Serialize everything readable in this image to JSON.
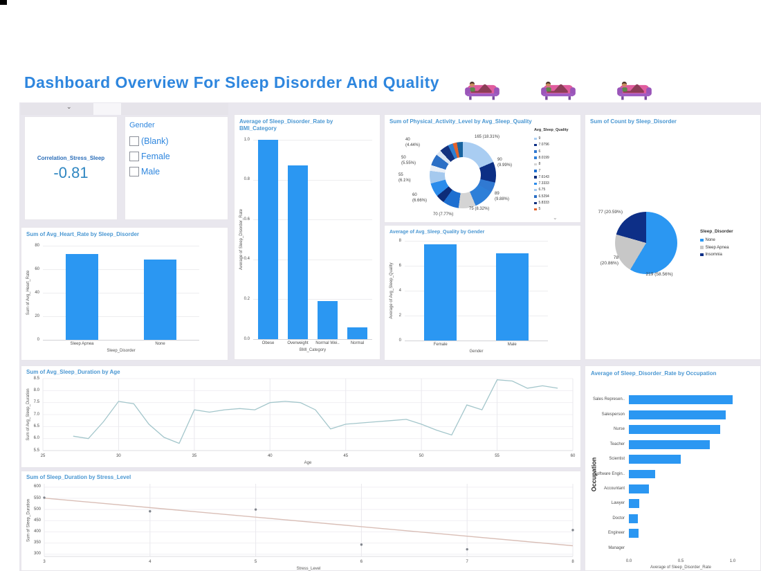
{
  "page": {
    "title": "Dashboard Overview For Sleep Disorder And Quality"
  },
  "header": {
    "couch_icon": "person-lying-on-couch",
    "couch_count": 3
  },
  "icons": {
    "strip_chevron": "⌄",
    "donut_scroll_chevron": "⌄"
  },
  "colors": {
    "accent": "#2e86de",
    "chart_title": "#4a97d2",
    "bar": "#2b97f2",
    "line": "#a3c6cb",
    "trend": "#d9beb6",
    "point": "#80858c",
    "pie_none": "#2b97f2",
    "pie_sleep_apnea": "#c7c7c7",
    "pie_insomnia": "#0d2f87",
    "donut_orange": "#e2622b"
  },
  "correlation_card": {
    "label": "Correlation_Stress_Sleep",
    "value": "-0.81"
  },
  "gender_filter": {
    "title": "Gender",
    "options": [
      {
        "label": "(Blank)",
        "checked": false
      },
      {
        "label": "Female",
        "checked": false
      },
      {
        "label": "Male",
        "checked": false
      }
    ]
  },
  "chart_data": [
    {
      "id": "bmi",
      "type": "bar",
      "title": "Average of Sleep_Disorder_Rate by BMI_Category",
      "xlabel": "BMI_Category",
      "ylabel": "Average of Sleep_Disorder_Rate",
      "categories": [
        "Obese",
        "Overweight",
        "Normal Wei..",
        "Normal"
      ],
      "values": [
        1.0,
        0.87,
        0.19,
        0.06
      ],
      "ylim": [
        0,
        1
      ],
      "yticks": [
        "0.0",
        "0.2",
        "0.4",
        "0.6",
        "0.8",
        "1.0"
      ],
      "bw": 0.68,
      "m": {
        "l": 24,
        "r": 10,
        "t": 6,
        "b": 26
      }
    },
    {
      "id": "activity_donut",
      "type": "donut",
      "title": "Sum of Physical_Activity_Level by Avg_Sleep_Quality",
      "legend_title": "Avg_Sleep_Quality",
      "geo": {
        "cx": 113,
        "cy": 87,
        "r": 48,
        "hole": 0.55
      },
      "label_fs": 6,
      "segments": [
        {
          "value": 18.31,
          "color": "#a9cdf2",
          "label": "165 (18.31%)"
        },
        {
          "value": 9.99,
          "color": "#0c2f85",
          "label": "90 (9.99%)"
        },
        {
          "value": 5.0,
          "color": "#3079d2"
        },
        {
          "value": 9.88,
          "color": "#2d7fd8",
          "label": "89 (9.88%)"
        },
        {
          "value": 8.32,
          "color": "#d4d4d4",
          "label": "75 (8.32%)"
        },
        {
          "value": 7.77,
          "color": "#1e6fd0",
          "label": "70 (7.77%)"
        },
        {
          "value": 4.2,
          "color": "#0d2c78"
        },
        {
          "value": 6.66,
          "color": "#2b8ceb",
          "label": "60 (6.66%)"
        },
        {
          "value": 6.1,
          "color": "#a5c9ee",
          "label": "55 (6.1%)"
        },
        {
          "value": 2.8,
          "color": "#e9eff8"
        },
        {
          "value": 5.55,
          "color": "#2a6fc6",
          "label": "50 (5.55%)"
        },
        {
          "value": 2.6,
          "color": "#dbe6f4"
        },
        {
          "value": 4.44,
          "color": "#12317f",
          "label": "40 (4.44%)"
        },
        {
          "value": 2.4,
          "color": "#2f7fd0"
        },
        {
          "value": 2.0,
          "color": "#e2622b"
        },
        {
          "value": 2.9,
          "color": "#17639f"
        }
      ],
      "labels": [
        {
          "text": "165 (18.31%)",
          "x": 130,
          "y": 29,
          "w": 70,
          "align": "left"
        },
        {
          "text": "90\n(9.99%)",
          "x": 163,
          "y": 62,
          "w": 44,
          "align": "left"
        },
        {
          "text": "89\n(9.88%)",
          "x": 159,
          "y": 111,
          "w": 44,
          "align": "left"
        },
        {
          "text": "75 (8.32%)",
          "x": 122,
          "y": 133,
          "w": 60,
          "align": "left"
        },
        {
          "text": "70 (7.77%)",
          "x": 70,
          "y": 141,
          "w": 60,
          "align": "left"
        },
        {
          "text": "60\n(6.66%)",
          "x": 40,
          "y": 113,
          "w": 40,
          "align": "left"
        },
        {
          "text": "55\n(6.1%)",
          "x": 20,
          "y": 84,
          "w": 40,
          "align": "left"
        },
        {
          "text": "50\n(5.55%)",
          "x": 24,
          "y": 59,
          "w": 40,
          "align": "left"
        },
        {
          "text": "40\n(4.44%)",
          "x": 30,
          "y": 33,
          "w": 40,
          "align": "left"
        }
      ],
      "legend": [
        {
          "label": "9",
          "color": "#a9cdf2"
        },
        {
          "label": "7.0796",
          "color": "#0c2f85"
        },
        {
          "label": "6",
          "color": "#3079d2"
        },
        {
          "label": "8.0199",
          "color": "#2d7fd8"
        },
        {
          "label": "8",
          "color": "#d4d4d4"
        },
        {
          "label": "7",
          "color": "#1e6fd0"
        },
        {
          "label": "7.6143",
          "color": "#0d2c78"
        },
        {
          "label": "7.3333",
          "color": "#2b8ceb"
        },
        {
          "label": "6.75",
          "color": "#a5c9ee"
        },
        {
          "label": "6.5294",
          "color": "#2a6fc6"
        },
        {
          "label": "5.8333",
          "color": "#12317f"
        },
        {
          "label": "5",
          "color": "#e2622b"
        }
      ],
      "legend_pos": {
        "x": 216,
        "y": 20,
        "t0": 12,
        "dy": 9.3,
        "fs": 5,
        "ms": 3.5
      }
    },
    {
      "id": "sleep_pie",
      "type": "pie",
      "title": "Sum of Count by Sleep_Disorder",
      "legend_title": "Sleep_Disorder",
      "geo": {
        "cx": 88,
        "cy": 185,
        "r": 45
      },
      "label_fs": 6.5,
      "segments": [
        {
          "name": "None",
          "count": 219,
          "value": 58.56,
          "color": "#2b97f2"
        },
        {
          "name": "Sleep Apnea",
          "count": 78,
          "value": 20.86,
          "color": "#c7c7c7"
        },
        {
          "name": "Insomnia",
          "count": 77,
          "value": 20.59,
          "color": "#0d2f87"
        }
      ],
      "labels": [
        {
          "text": "77 (20.59%)",
          "x": 2,
          "y": 137,
          "w": 52,
          "align": "right"
        },
        {
          "text": "78\n(20.86%)",
          "x": 2,
          "y": 203,
          "w": 46,
          "align": "right"
        },
        {
          "text": "219 (58.56%)",
          "x": 62,
          "y": 227,
          "w": 90,
          "align": "center"
        }
      ],
      "legend": [
        {
          "label": "None",
          "color": "#2b97f2"
        },
        {
          "label": "Sleep Apnea",
          "color": "#c7c7c7"
        },
        {
          "label": "Insomnia",
          "color": "#0d2f87"
        }
      ],
      "legend_pos": {
        "x": 166,
        "y": 166,
        "t0": 12,
        "dy": 10.5,
        "fs": 6,
        "ms": 4.5
      }
    },
    {
      "id": "heart",
      "type": "bar",
      "title": "Sum of Avg_Heart_Rate by Sleep_Disorder",
      "xlabel": "Sleep_Disorder",
      "ylabel": "Sum of Avg_Heart_Rate",
      "categories": [
        "Sleep Apnea",
        "None"
      ],
      "values": [
        73,
        68
      ],
      "ylim": [
        0,
        80
      ],
      "yticks": [
        "0",
        "20",
        "40",
        "60",
        "80"
      ],
      "bw": 0.42,
      "m": {
        "l": 28,
        "r": 40,
        "t": 8,
        "b": 26
      }
    },
    {
      "id": "quality_gender",
      "type": "bar",
      "title": "Average of Avg_Sleep_Quality by Gender",
      "xlabel": "Gender",
      "ylabel": "Average of Avg_Sleep_Quality",
      "categories": [
        "Female",
        "Male"
      ],
      "values": [
        7.7,
        7.0
      ],
      "ylim": [
        0,
        8
      ],
      "yticks": [
        "0",
        "2",
        "4",
        "6",
        "8"
      ],
      "bw": 0.45,
      "m": {
        "l": 26,
        "r": 45,
        "t": 6,
        "b": 26
      }
    },
    {
      "id": "age_line",
      "type": "line",
      "title": "Sum of Avg_Sleep_Duration by Age",
      "xlabel": "Age",
      "ylabel": "Sum of Avg_Sleep_Duration",
      "x": [
        27,
        28,
        29,
        30,
        31,
        32,
        33,
        34,
        35,
        36,
        37,
        38,
        39,
        40,
        41,
        42,
        43,
        44,
        45,
        46,
        47,
        48,
        49,
        50,
        51,
        52,
        53,
        54,
        55,
        56,
        57,
        58,
        59
      ],
      "y": [
        6.1,
        6.0,
        6.7,
        7.55,
        7.45,
        6.6,
        6.05,
        5.8,
        7.2,
        7.1,
        7.2,
        7.25,
        7.2,
        7.5,
        7.55,
        7.5,
        7.2,
        6.4,
        6.6,
        6.65,
        6.7,
        6.75,
        6.8,
        6.6,
        6.35,
        6.15,
        7.4,
        7.2,
        8.45,
        8.4,
        8.1,
        8.2,
        8.1
      ],
      "xlim": [
        25,
        60
      ],
      "ylim": [
        5.5,
        8.5
      ],
      "xticks": [
        "25",
        "30",
        "35",
        "40",
        "45",
        "50",
        "55",
        "60"
      ],
      "yticks": [
        "5.5",
        "6.0",
        "6.5",
        "7.0",
        "7.5",
        "8.0",
        "8.5"
      ],
      "m": {
        "l": 28,
        "r": 8,
        "t": 4,
        "b": 22
      }
    },
    {
      "id": "stress_scatter",
      "type": "scatter",
      "title": "Sum of Sleep_Duration by Stress_Level",
      "xlabel": "Stress_Level",
      "ylabel": "Sum of Sleep_Duration",
      "points": [
        [
          3,
          553
        ],
        [
          4,
          492
        ],
        [
          5,
          500
        ],
        [
          6,
          343
        ],
        [
          7,
          322
        ],
        [
          8,
          408
        ]
      ],
      "trend": [
        [
          3,
          551
        ],
        [
          8,
          338
        ]
      ],
      "xlim": [
        3,
        8
      ],
      "ylim": [
        290,
        615
      ],
      "xticks": [
        "3",
        "4",
        "5",
        "6",
        "7",
        "8"
      ],
      "yticks": [
        "300",
        "350",
        "400",
        "450",
        "500",
        "550",
        "600"
      ],
      "m": {
        "l": 30,
        "r": 8,
        "t": 4,
        "b": 26
      }
    },
    {
      "id": "occupation",
      "type": "hbar",
      "title": "Average of Sleep_Disorder_Rate by Occupation",
      "xlabel": "Average of Sleep_Disorder_Rate",
      "ylabel": "Occupation",
      "categories": [
        "Sales Represen..",
        "Salesperson",
        "Nurse",
        "Teacher",
        "Scientist",
        "Software Engin..",
        "Accountant",
        "Lawyer",
        "Doctor",
        "Engineer",
        "Manager"
      ],
      "values": [
        1.0,
        0.93,
        0.88,
        0.78,
        0.5,
        0.25,
        0.19,
        0.1,
        0.085,
        0.09,
        0
      ],
      "xlim": [
        0,
        1
      ],
      "xticks": [
        "0.0",
        "0.5",
        "1.0"
      ],
      "bw": 0.6,
      "m": {
        "l": 60,
        "r": 40,
        "t": 2,
        "b": 20
      }
    }
  ]
}
